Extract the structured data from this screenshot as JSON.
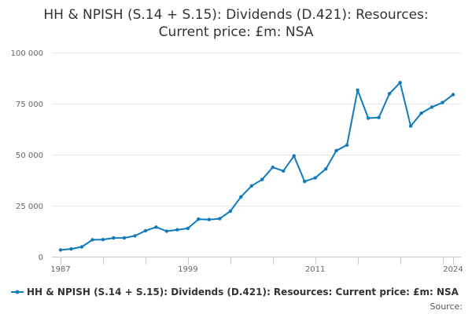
{
  "chart_data": {
    "type": "line",
    "title_lines": [
      "HH & NPISH (S.14 + S.15): Dividends (D.421): Resources:",
      "Current price: £m: NSA"
    ],
    "x": [
      1987,
      1988,
      1989,
      1990,
      1991,
      1992,
      1993,
      1994,
      1995,
      1996,
      1997,
      1998,
      1999,
      2000,
      2001,
      2002,
      2003,
      2004,
      2005,
      2006,
      2007,
      2008,
      2009,
      2010,
      2011,
      2012,
      2013,
      2014,
      2015,
      2016,
      2017,
      2018,
      2019,
      2020,
      2021,
      2022,
      2023,
      2024
    ],
    "series": [
      {
        "name": "HH & NPISH (S.14 + S.15): Dividends (D.421): Resources: Current price: £m: NSA",
        "color": "#0f7bbd",
        "values": [
          3300,
          3800,
          4800,
          8300,
          8400,
          9200,
          9200,
          10200,
          12700,
          14500,
          12500,
          13200,
          13900,
          18400,
          18200,
          18600,
          22300,
          29300,
          34700,
          37800,
          43800,
          42000,
          49400,
          36900,
          38600,
          43000,
          52000,
          54700,
          81600,
          67900,
          68200,
          79900,
          85300,
          64000,
          70300,
          73300,
          75500,
          79400
        ]
      }
    ],
    "x_ticks": [
      "1987",
      "1999",
      "2011",
      "2024"
    ],
    "y_ticks": [
      "0",
      "25 000",
      "50 000",
      "75 000",
      "100 000"
    ],
    "y_tick_values": [
      0,
      25000,
      50000,
      75000,
      100000
    ],
    "ylim": [
      0,
      100000
    ],
    "xlim": [
      1987,
      2024
    ],
    "legend": "bottom",
    "source_label": "Source:"
  }
}
